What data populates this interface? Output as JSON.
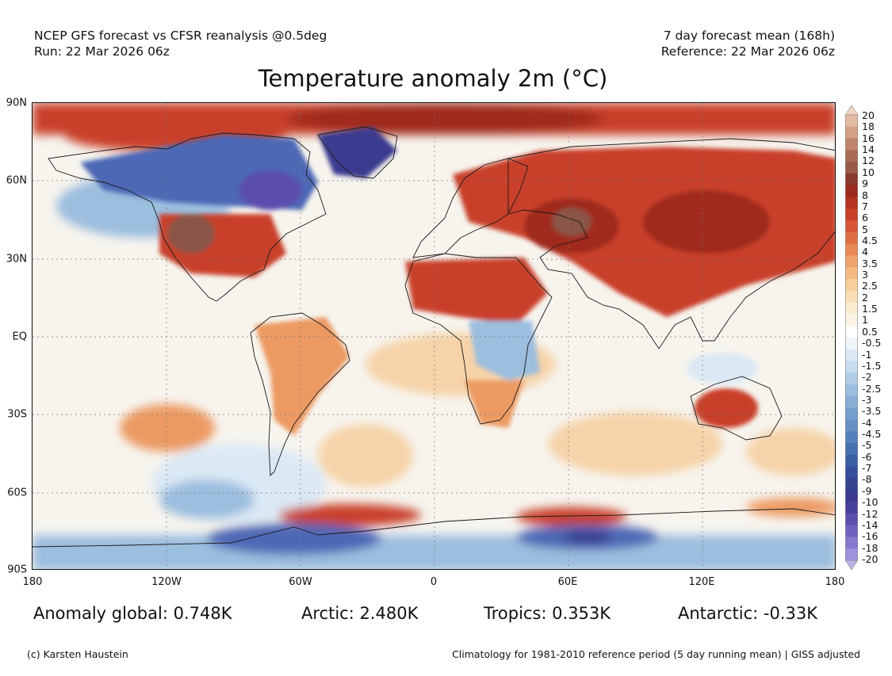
{
  "header": {
    "left_line1": "NCEP GFS forecast vs CFSR reanalysis @0.5deg",
    "left_line2": "Run: 22 Mar 2026 06z",
    "right_line1": "7 day forecast mean (168h)",
    "right_line2": "Reference: 22 Mar 2026 06z"
  },
  "title": "Temperature anomaly 2m (°C)",
  "axes": {
    "lat_labels": [
      "90N",
      "60N",
      "30N",
      "EQ",
      "30S",
      "60S",
      "90S"
    ],
    "lon_labels": [
      "180",
      "120W",
      "60W",
      "0",
      "60E",
      "120E",
      "180"
    ]
  },
  "colorbar": {
    "labels": [
      "20",
      "18",
      "16",
      "14",
      "12",
      "10",
      "9",
      "8",
      "7",
      "6",
      "5",
      "4.5",
      "4",
      "3.5",
      "3",
      "2.5",
      "2",
      "1.5",
      "1",
      "0.5",
      "-0.5",
      "-1",
      "-1.5",
      "-2",
      "-2.5",
      "-3",
      "-3.5",
      "-4",
      "-4.5",
      "-5",
      "-6",
      "-7",
      "-8",
      "-9",
      "-10",
      "-12",
      "-14",
      "-16",
      "-18",
      "-20"
    ],
    "colors": [
      "#f2d5c4",
      "#e4bba3",
      "#d4a083",
      "#c0856a",
      "#a96c55",
      "#985a46",
      "#8a3a2a",
      "#9c2a1e",
      "#b4321f",
      "#c9402a",
      "#d65636",
      "#e06e43",
      "#e98a55",
      "#efa36a",
      "#f3bb82",
      "#f6cf9a",
      "#f8dfb5",
      "#faeccf",
      "#fcf5e6",
      "#ffffff",
      "#eef5fb",
      "#dbe9f5",
      "#c7dcee",
      "#b1cde6",
      "#9cbedf",
      "#88afd6",
      "#749fcd",
      "#6490c4",
      "#5480bb",
      "#4671b0",
      "#3b5fa5",
      "#354f9a",
      "#34428f",
      "#3a3a8f",
      "#46409c",
      "#5a4eae",
      "#7060c0",
      "#8778cf",
      "#a092dc",
      "#bcb2e8"
    ]
  },
  "stats": {
    "global": "Anomaly global: 0.748K",
    "arctic": "Arctic: 2.480K",
    "tropics": "Tropics: 0.353K",
    "antarctic": "Antarctic: -0.33K"
  },
  "footer": {
    "credit": "(c) Karsten Haustein",
    "climatology": "Climatology for 1981-2010 reference period (5 day running mean) | GISS adjusted"
  },
  "map_colors": {
    "ocean_neutral": "#f7f4ee",
    "warm_light": "#f6d3a8",
    "warm": "#ec9a62",
    "warm_strong": "#c9402a",
    "hot": "#a02c1e",
    "very_hot": "#8a5546",
    "cool_light": "#dbe9f5",
    "cool": "#9cbedf",
    "cold": "#4d68b5",
    "very_cold": "#3a3a8f",
    "extreme_cold": "#5a4eae",
    "coast": "#1a1a1a",
    "grid": "#777777"
  }
}
